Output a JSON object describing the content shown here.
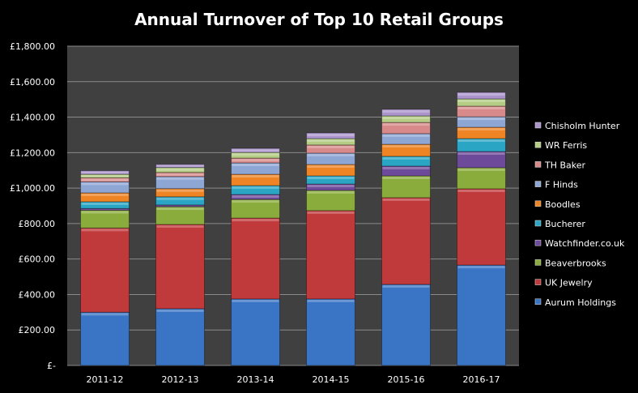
{
  "chart_data": {
    "type": "bar",
    "stacked": true,
    "title": "Annual Turnover of Top 10 Retail Groups",
    "xlabel": "",
    "ylabel": "",
    "ylim": [
      0,
      1800
    ],
    "yticks": [
      "£-",
      "£200.00",
      "£400.00",
      "£600.00",
      "£800.00",
      "£1,000.00",
      "£1,200.00",
      "£1,400.00",
      "£1,600.00",
      "£1,800.00"
    ],
    "grid": true,
    "legend_position": "right",
    "categories": [
      "2011-12",
      "2012-13",
      "2013-14",
      "2014-15",
      "2015-16",
      "2016-17"
    ],
    "series": [
      {
        "name": "Aurum Holdings",
        "color": "#3a74c4",
        "values": [
          300,
          320,
          375,
          375,
          457,
          566
        ]
      },
      {
        "name": "UK Jewelry",
        "color": "#c0393b",
        "values": [
          475,
          475,
          456,
          498,
          489,
          430
        ]
      },
      {
        "name": "Beaverbrooks",
        "color": "#8aac3c",
        "values": [
          100,
          100,
          105,
          114,
          123,
          119
        ]
      },
      {
        "name": "Watchfinder.co.uk",
        "color": "#6e4a9a",
        "values": [
          10,
          10,
          28,
          36,
          55,
          91
        ]
      },
      {
        "name": "Bucherer",
        "color": "#2aa6c4",
        "values": [
          38,
          46,
          50,
          46,
          55,
          73
        ]
      },
      {
        "name": "Boodles",
        "color": "#ee8424",
        "values": [
          50,
          46,
          64,
          64,
          68,
          64
        ]
      },
      {
        "name": "F Hinds",
        "color": "#8ea6d4",
        "values": [
          62,
          68,
          64,
          64,
          60,
          59
        ]
      },
      {
        "name": "TH Baker",
        "color": "#d88a8a",
        "values": [
          23,
          23,
          27,
          46,
          63,
          60
        ]
      },
      {
        "name": "WR Ferris",
        "color": "#b4cc84",
        "values": [
          20,
          28,
          32,
          36,
          37,
          41
        ]
      },
      {
        "name": "Chisholm Hunter",
        "color": "#ab94cc",
        "values": [
          20,
          18,
          23,
          32,
          37,
          37
        ]
      }
    ]
  }
}
